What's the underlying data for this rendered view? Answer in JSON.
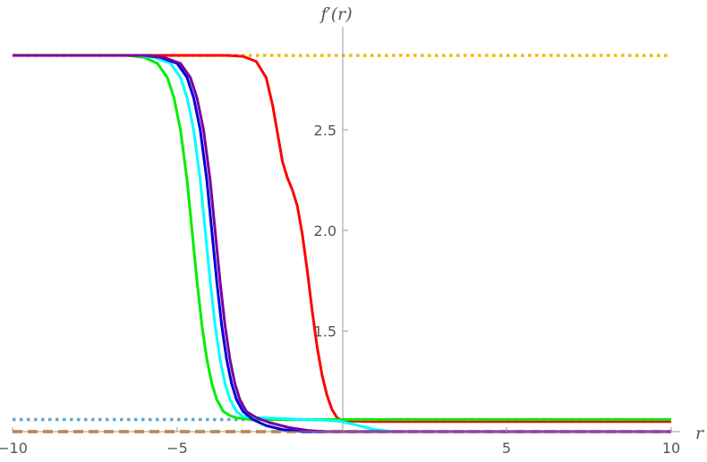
{
  "chart_data": {
    "type": "line",
    "xlabel": "r",
    "ylabel": "f′(r)",
    "xlim": [
      -10,
      10
    ],
    "ylim": [
      1.03,
      2.93
    ],
    "grid": false,
    "legend": "none",
    "x_ticks": [
      {
        "value": -10,
        "label": "−10"
      },
      {
        "value": -5,
        "label": "−5"
      },
      {
        "value": 5,
        "label": "5"
      },
      {
        "value": 10,
        "label": "10"
      }
    ],
    "y_ticks": [
      {
        "value": 1.5,
        "label": "1.5"
      },
      {
        "value": 2.0,
        "label": "2.0"
      },
      {
        "value": 2.5,
        "label": "2.5"
      }
    ],
    "series": [
      {
        "color": "#f5b800",
        "style": "dotted",
        "x": [
          -10,
          10
        ],
        "y": [
          2.87,
          2.87
        ]
      },
      {
        "color": "#5fa8d3",
        "style": "dotted",
        "x": [
          -10,
          10
        ],
        "y": [
          1.06,
          1.06
        ]
      },
      {
        "color": "#c07a30",
        "style": "dashed",
        "x": [
          -10,
          10
        ],
        "y": [
          1.0,
          1.0
        ]
      },
      {
        "color": "#ff0000",
        "style": "solid",
        "x": [
          -10,
          -3.5,
          -3.0,
          -2.6,
          -2.3,
          -2.1,
          -1.95,
          -1.8,
          -1.65,
          -1.5,
          -1.35,
          -1.2,
          -1.05,
          -0.9,
          -0.75,
          -0.6,
          -0.45,
          -0.3,
          -0.15,
          0.0,
          0.3,
          1.0,
          10
        ],
        "y": [
          2.87,
          2.87,
          2.865,
          2.84,
          2.76,
          2.62,
          2.48,
          2.34,
          2.26,
          2.2,
          2.12,
          1.98,
          1.8,
          1.6,
          1.42,
          1.28,
          1.18,
          1.11,
          1.07,
          1.055,
          1.052,
          1.05,
          1.05
        ]
      },
      {
        "color": "#00ee00",
        "style": "solid",
        "x": [
          -10,
          -6.5,
          -6.0,
          -5.6,
          -5.3,
          -5.1,
          -4.9,
          -4.7,
          -4.55,
          -4.4,
          -4.25,
          -4.1,
          -3.95,
          -3.8,
          -3.6,
          -3.4,
          -3.2,
          -2.9,
          -2.5,
          -2.0,
          0.0,
          10
        ],
        "y": [
          2.87,
          2.87,
          2.86,
          2.83,
          2.76,
          2.66,
          2.5,
          2.25,
          2.0,
          1.75,
          1.53,
          1.36,
          1.24,
          1.16,
          1.1,
          1.08,
          1.068,
          1.062,
          1.06,
          1.06,
          1.06,
          1.06
        ]
      },
      {
        "color": "#00ffff",
        "style": "solid",
        "x": [
          -10,
          -6.2,
          -5.7,
          -5.2,
          -4.9,
          -4.7,
          -4.5,
          -4.3,
          -4.15,
          -4.0,
          -3.85,
          -3.7,
          -3.55,
          -3.4,
          -3.2,
          -3.0,
          -2.7,
          -2.3,
          -1.8,
          -1.2,
          -0.6,
          0.0,
          0.5,
          1.0,
          1.5,
          10
        ],
        "y": [
          2.87,
          2.87,
          2.86,
          2.83,
          2.76,
          2.66,
          2.5,
          2.25,
          2.0,
          1.75,
          1.53,
          1.36,
          1.24,
          1.16,
          1.1,
          1.075,
          1.07,
          1.068,
          1.065,
          1.06,
          1.058,
          1.05,
          1.03,
          1.01,
          1.0,
          1.0
        ]
      },
      {
        "color": "#0000dd",
        "style": "solid",
        "x": [
          -10,
          -6.0,
          -5.5,
          -5.0,
          -4.7,
          -4.5,
          -4.3,
          -4.1,
          -3.95,
          -3.8,
          -3.65,
          -3.5,
          -3.35,
          -3.2,
          -3.0,
          -2.7,
          -2.3,
          -1.8,
          -1.2,
          10
        ],
        "y": [
          2.87,
          2.87,
          2.86,
          2.83,
          2.76,
          2.66,
          2.5,
          2.25,
          2.0,
          1.75,
          1.53,
          1.36,
          1.24,
          1.16,
          1.1,
          1.06,
          1.03,
          1.01,
          1.0,
          1.0
        ]
      },
      {
        "color": "#7a00a0",
        "style": "solid",
        "x": [
          -10,
          -5.9,
          -5.4,
          -4.9,
          -4.6,
          -4.4,
          -4.2,
          -4.0,
          -3.85,
          -3.7,
          -3.55,
          -3.4,
          -3.25,
          -3.1,
          -2.9,
          -2.6,
          -2.2,
          -1.6,
          -1.0,
          -0.5,
          0.0,
          10
        ],
        "y": [
          2.87,
          2.87,
          2.86,
          2.83,
          2.76,
          2.66,
          2.5,
          2.25,
          2.0,
          1.75,
          1.53,
          1.36,
          1.24,
          1.16,
          1.1,
          1.07,
          1.045,
          1.02,
          1.005,
          1.0,
          1.0,
          1.0
        ]
      }
    ]
  }
}
